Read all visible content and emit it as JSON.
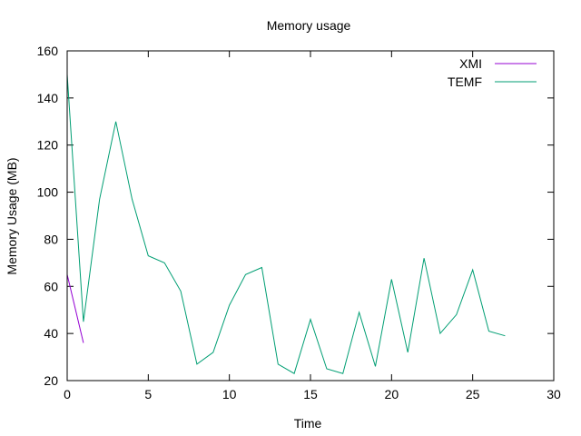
{
  "chart_data": {
    "type": "line",
    "title": "Memory usage",
    "xlabel": "Time",
    "ylabel": "Memory Usage (MB)",
    "xlim": [
      0,
      30
    ],
    "ylim": [
      20,
      160
    ],
    "xticks": [
      0,
      5,
      10,
      15,
      20,
      25,
      30
    ],
    "yticks": [
      20,
      40,
      60,
      80,
      100,
      120,
      140,
      160
    ],
    "grid": false,
    "legend_position": "top-right",
    "series": [
      {
        "name": "XMI",
        "color": "#9400d3",
        "x": [
          0,
          1
        ],
        "y": [
          65,
          36
        ]
      },
      {
        "name": "TEMF",
        "color": "#009e73",
        "x": [
          0,
          1,
          2,
          3,
          4,
          5,
          6,
          7,
          8,
          9,
          10,
          11,
          12,
          13,
          14,
          15,
          16,
          17,
          18,
          19,
          20,
          21,
          22,
          23,
          24,
          25,
          26,
          27
        ],
        "y": [
          150,
          45,
          97,
          130,
          97,
          73,
          70,
          58,
          27,
          32,
          52,
          65,
          68,
          27,
          23,
          46,
          25,
          23,
          49,
          26,
          63,
          32,
          72,
          40,
          48,
          67,
          41,
          39
        ]
      }
    ]
  }
}
